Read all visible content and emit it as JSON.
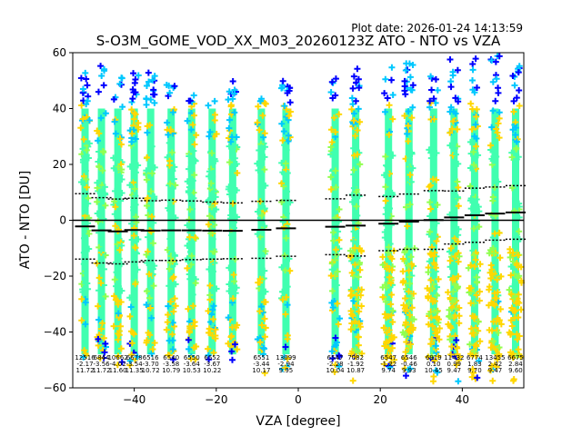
{
  "chart_data": {
    "type": "scatter",
    "plot_date": "Plot date: 2026-01-24 14:13:59",
    "title": "S-O3M_GOME_VOD_XX_M03_20260123Z ATO - NTO vs VZA",
    "xlabel": "VZA [degree]",
    "ylabel": "ATO - NTO [DU]",
    "xlim": [
      -55,
      55
    ],
    "ylim": [
      -60,
      60
    ],
    "xticks": [
      -40,
      -20,
      0,
      20,
      40
    ],
    "yticks": [
      -60,
      -40,
      -20,
      0,
      20,
      40,
      60
    ],
    "colors": {
      "low": "#0000ff",
      "mid": "#00c8ff",
      "main": "#40ffb0",
      "lime": "#90ff50",
      "high": "#ffd700"
    },
    "bins": [
      {
        "vza": -52,
        "count": "12516",
        "mean": "-2.17",
        "std": "11.72",
        "mean_val": -2.2,
        "std_val": 11.7,
        "ymin": -50,
        "ymax": 58
      },
      {
        "vza": -48,
        "count": "6844",
        "mean": "-3.56",
        "std": "11.72",
        "mean_val": -3.6,
        "std_val": 11.7,
        "ymin": -50,
        "ymax": 56
      },
      {
        "vza": -44,
        "count": "10662",
        "mean": "-4.02",
        "std": "11.60",
        "mean_val": -4.0,
        "std_val": 11.6,
        "ymin": -52,
        "ymax": 52
      },
      {
        "vza": -40,
        "count": "6678",
        "mean": "-3.54",
        "std": "11.35",
        "mean_val": -3.5,
        "std_val": 11.4,
        "ymin": -52,
        "ymax": 55
      },
      {
        "vza": -36,
        "count": "6516",
        "mean": "-3.70",
        "std": "10.72",
        "mean_val": -3.7,
        "std_val": 10.7,
        "ymin": -50,
        "ymax": 56
      },
      {
        "vza": -31,
        "count": "6540",
        "mean": "-3.58",
        "std": "10.79",
        "mean_val": -3.6,
        "std_val": 10.8,
        "ymin": -50,
        "ymax": 50
      },
      {
        "vza": -26,
        "count": "6550",
        "mean": "-3.64",
        "std": "10.53",
        "mean_val": -3.6,
        "std_val": 10.5,
        "ymin": -50,
        "ymax": 48
      },
      {
        "vza": -21,
        "count": "6552",
        "mean": "-3.67",
        "std": "10.22",
        "mean_val": -3.7,
        "std_val": 10.2,
        "ymin": -50,
        "ymax": 45
      },
      {
        "vza": -16,
        "count": "",
        "mean": "",
        "std": "",
        "mean_val": -3.8,
        "std_val": 10.0,
        "ymin": -50,
        "ymax": 50
      },
      {
        "vza": -9,
        "count": "6551",
        "mean": "-3.44",
        "std": "10.17",
        "mean_val": -3.4,
        "std_val": 10.2,
        "ymin": -55,
        "ymax": 45
      },
      {
        "vza": -3,
        "count": "13099",
        "mean": "-2.94",
        "std": "9.95",
        "mean_val": -2.9,
        "std_val": 10.0,
        "ymin": -55,
        "ymax": 52
      },
      {
        "vza": 9,
        "count": "6547",
        "mean": "-2.28",
        "std": "10.04",
        "mean_val": -2.3,
        "std_val": 10.0,
        "ymin": -55,
        "ymax": 52
      },
      {
        "vza": 14,
        "count": "7082",
        "mean": "-1.92",
        "std": "10.87",
        "mean_val": -1.9,
        "std_val": 10.9,
        "ymin": -58,
        "ymax": 55
      },
      {
        "vza": 22,
        "count": "6547",
        "mean": "-1.22",
        "std": "9.74",
        "mean_val": -1.2,
        "std_val": 9.7,
        "ymin": -58,
        "ymax": 55
      },
      {
        "vza": 27,
        "count": "6546",
        "mean": "-0.46",
        "std": "9.93",
        "mean_val": -0.5,
        "std_val": 9.9,
        "ymin": -56,
        "ymax": 57
      },
      {
        "vza": 33,
        "count": "6919",
        "mean": "0.10",
        "std": "10.45",
        "mean_val": 0.1,
        "std_val": 10.5,
        "ymin": -58,
        "ymax": 57
      },
      {
        "vza": 38,
        "count": "11432",
        "mean": "0.99",
        "std": "9.47",
        "mean_val": 1.0,
        "std_val": 9.5,
        "ymin": -58,
        "ymax": 58
      },
      {
        "vza": 43,
        "count": "6774",
        "mean": "1.83",
        "std": "9.70",
        "mean_val": 1.8,
        "std_val": 9.7,
        "ymin": -58,
        "ymax": 58
      },
      {
        "vza": 48,
        "count": "13455",
        "mean": "2.42",
        "std": "9.47",
        "mean_val": 2.4,
        "std_val": 9.5,
        "ymin": -58,
        "ymax": 59
      },
      {
        "vza": 53,
        "count": "6675",
        "mean": "2.84",
        "std": "9.60",
        "mean_val": 2.8,
        "std_val": 9.6,
        "ymin": -58,
        "ymax": 57
      }
    ]
  }
}
